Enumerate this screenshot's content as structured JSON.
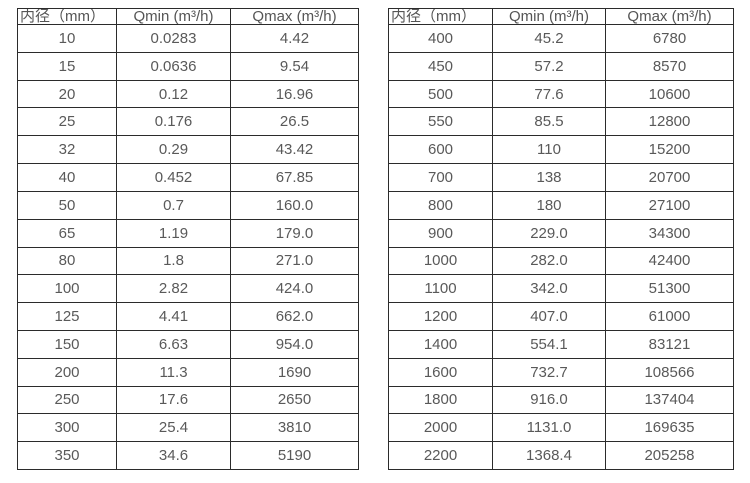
{
  "colors": {
    "background": "#ffffff",
    "border": "#2b2b2b",
    "text": "#595959"
  },
  "table_left": {
    "headers": [
      "内径（mm）",
      "Qmin (m³/h)",
      "Qmax (m³/h)"
    ],
    "rows": [
      [
        "10",
        "0.0283",
        "4.42"
      ],
      [
        "15",
        "0.0636",
        "9.54"
      ],
      [
        "20",
        "0.12",
        "16.96"
      ],
      [
        "25",
        "0.176",
        "26.5"
      ],
      [
        "32",
        "0.29",
        "43.42"
      ],
      [
        "40",
        "0.452",
        "67.85"
      ],
      [
        "50",
        "0.7",
        "160.0"
      ],
      [
        "65",
        "1.19",
        "179.0"
      ],
      [
        "80",
        "1.8",
        "271.0"
      ],
      [
        "100",
        "2.82",
        "424.0"
      ],
      [
        "125",
        "4.41",
        "662.0"
      ],
      [
        "150",
        "6.63",
        "954.0"
      ],
      [
        "200",
        "11.3",
        "1690"
      ],
      [
        "250",
        "17.6",
        "2650"
      ],
      [
        "300",
        "25.4",
        "3810"
      ],
      [
        "350",
        "34.6",
        "5190"
      ]
    ]
  },
  "table_right": {
    "headers": [
      "内径（mm）",
      "Qmin (m³/h)",
      "Qmax (m³/h)"
    ],
    "rows": [
      [
        "400",
        "45.2",
        "6780"
      ],
      [
        "450",
        "57.2",
        "8570"
      ],
      [
        "500",
        "77.6",
        "10600"
      ],
      [
        "550",
        "85.5",
        "12800"
      ],
      [
        "600",
        "110",
        "15200"
      ],
      [
        "700",
        "138",
        "20700"
      ],
      [
        "800",
        "180",
        "27100"
      ],
      [
        "900",
        "229.0",
        "34300"
      ],
      [
        "1000",
        "282.0",
        "42400"
      ],
      [
        "1100",
        "342.0",
        "51300"
      ],
      [
        "1200",
        "407.0",
        "61000"
      ],
      [
        "1400",
        "554.1",
        "83121"
      ],
      [
        "1600",
        "732.7",
        "108566"
      ],
      [
        "1800",
        "916.0",
        "137404"
      ],
      [
        "2000",
        "1131.0",
        "169635"
      ],
      [
        "2200",
        "1368.4",
        "205258"
      ]
    ]
  }
}
